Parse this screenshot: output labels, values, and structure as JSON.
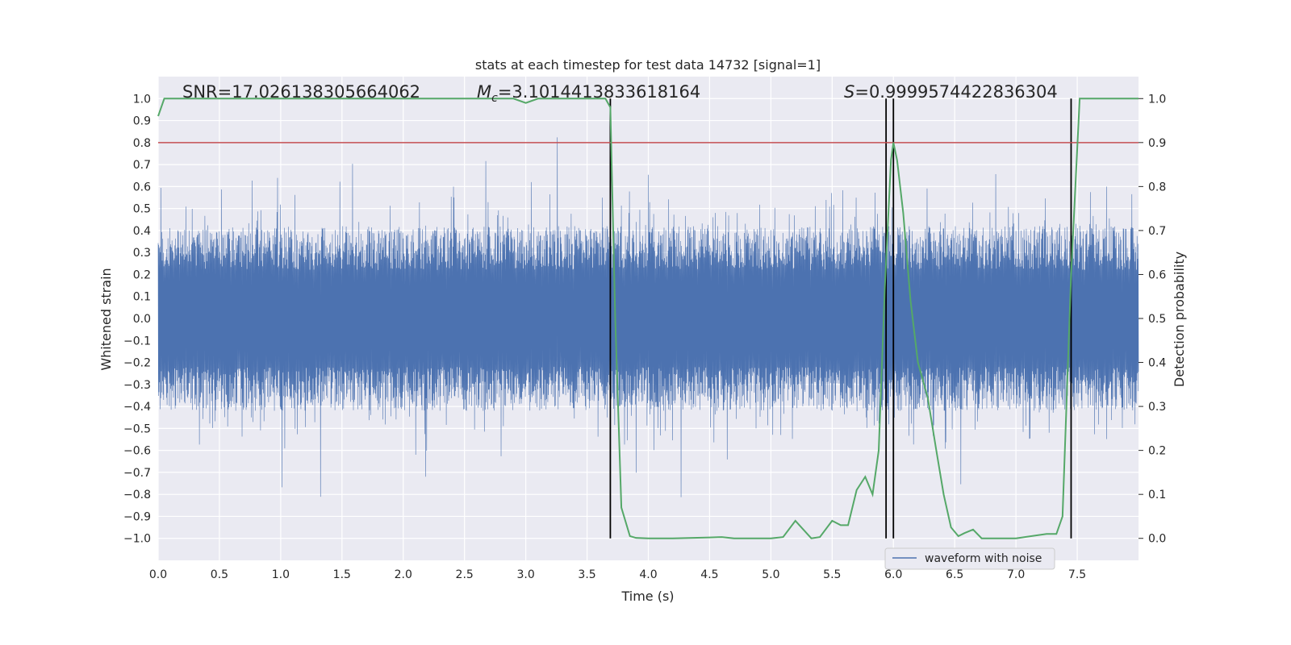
{
  "chart_data": {
    "type": "line",
    "title": "stats at each timestep for test data 14732 [signal=1]",
    "xlabel": "Time (s)",
    "ylabel": "Whitened strain",
    "ylabel_right": "Detection probability",
    "xlim": [
      0.0,
      8.0
    ],
    "ylim": [
      -1.1,
      1.1
    ],
    "ylim_right": [
      -0.05,
      1.05
    ],
    "xticks": [
      "0.0",
      "0.5",
      "1.0",
      "1.5",
      "2.0",
      "2.5",
      "3.0",
      "3.5",
      "4.0",
      "4.5",
      "5.0",
      "5.5",
      "6.0",
      "6.5",
      "7.0",
      "7.5"
    ],
    "yticks": [
      "1.0",
      "0.9",
      "0.8",
      "0.7",
      "0.6",
      "0.5",
      "0.4",
      "0.3",
      "0.2",
      "0.1",
      "0.0",
      "−0.1",
      "−0.2",
      "−0.3",
      "−0.4",
      "−0.5",
      "−0.6",
      "−0.7",
      "−0.8",
      "−0.9",
      "−1.0"
    ],
    "yticks_right": [
      "1.0",
      "0.9",
      "0.8",
      "0.7",
      "0.6",
      "0.5",
      "0.4",
      "0.3",
      "0.2",
      "0.1",
      "0.0"
    ],
    "grid": true,
    "annotations": {
      "snr": "SNR=17.026138305664062",
      "mc_symbol": "M",
      "mc_sub": "c",
      "mc_value": "=3.1014413833618164",
      "s_symbol": "S",
      "s_value": "=0.9999574422836304"
    },
    "threshold": {
      "value": 0.9,
      "axis": "right",
      "color": "#c44e52"
    },
    "vertical_lines": [
      3.69,
      5.94,
      6.0,
      7.45
    ],
    "series": [
      {
        "name": "waveform with noise",
        "axis": "left",
        "color": "#4c72b0",
        "style": "dense noisy strain, typical amplitude ±0.4, peaks to about ±0.9, seed 14732"
      },
      {
        "name": "detection probability",
        "axis": "right",
        "color": "#55a868",
        "x": [
          0.0,
          0.05,
          0.1,
          0.5,
          1.0,
          1.5,
          2.0,
          2.5,
          2.8,
          2.9,
          3.0,
          3.1,
          3.2,
          3.5,
          3.6,
          3.65,
          3.69,
          3.73,
          3.78,
          3.85,
          3.9,
          4.0,
          4.2,
          4.5,
          4.6,
          4.7,
          5.0,
          5.1,
          5.2,
          5.33,
          5.4,
          5.5,
          5.57,
          5.63,
          5.7,
          5.77,
          5.83,
          5.88,
          5.93,
          5.98,
          6.0,
          6.03,
          6.08,
          6.14,
          6.2,
          6.28,
          6.35,
          6.41,
          6.47,
          6.53,
          6.58,
          6.65,
          6.72,
          6.8,
          7.0,
          7.25,
          7.33,
          7.38,
          7.45,
          7.52,
          7.6,
          8.0
        ],
        "values": [
          0.96,
          1.0,
          1.0,
          1.0,
          1.0,
          1.0,
          1.0,
          1.0,
          1.0,
          1.0,
          0.99,
          1.0,
          1.0,
          1.0,
          1.0,
          1.0,
          0.98,
          0.5,
          0.07,
          0.005,
          0.001,
          0.0,
          0.0,
          0.002,
          0.003,
          0.0,
          0.0,
          0.003,
          0.04,
          0.0,
          0.003,
          0.04,
          0.03,
          0.03,
          0.11,
          0.14,
          0.1,
          0.2,
          0.57,
          0.86,
          0.9,
          0.86,
          0.74,
          0.54,
          0.4,
          0.32,
          0.2,
          0.1,
          0.025,
          0.005,
          0.012,
          0.02,
          0.0,
          0.0,
          0.0,
          0.01,
          0.01,
          0.05,
          0.6,
          1.0,
          1.0,
          1.0
        ]
      }
    ],
    "legend": {
      "label": "waveform with noise",
      "position": "bottom-right"
    }
  }
}
